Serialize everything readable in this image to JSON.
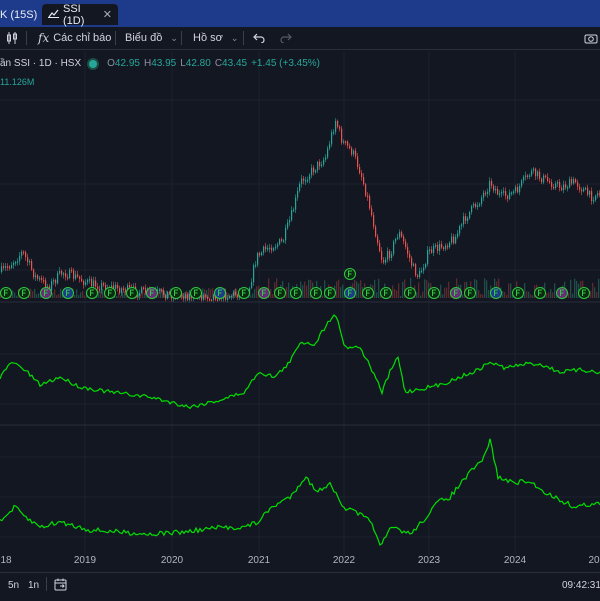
{
  "tabs": [
    {
      "label": "K (15S)"
    },
    {
      "label": "SSI (1D)",
      "close": "✕"
    }
  ],
  "toolbar": {
    "indicators": "Các chỉ báo",
    "chart": "Biểu đồ",
    "profile": "Hồ sơ"
  },
  "legend": {
    "name": "ần SSI · 1D · HSX",
    "o_label": "O",
    "o_value": "42.95",
    "h_label": "H",
    "h_value": "43.95",
    "l_label": "L",
    "l_value": "42.80",
    "c_label": "C",
    "c_value": "43.45",
    "change": "+1.45 (+3.45%)",
    "volume": "11.126M"
  },
  "xaxis": {
    "labels": [
      "18",
      "2019",
      "2020",
      "2021",
      "2022",
      "2023",
      "2024",
      "20"
    ]
  },
  "bottom": {
    "range_5y": "5n",
    "range_1y": "1n",
    "time": "09:42:31"
  },
  "colors": {
    "up": "#26a69a",
    "down": "#ef5350",
    "indicator": "#00e000",
    "tab_bar": "#1e3a8a",
    "background": "#131722"
  },
  "icons": [
    "candlestick-icon",
    "function-icon",
    "undo-icon",
    "redo-icon",
    "calendar-range-icon",
    "screenshot-icon"
  ]
}
